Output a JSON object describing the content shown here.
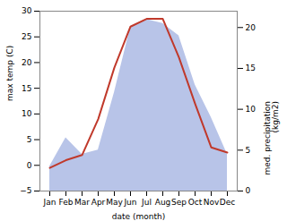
{
  "chart_data": {
    "type": "line",
    "xlabel": "date (month)",
    "ylabel": "max temp (C)",
    "y2label": "med. precipitation\n(kg/m2)",
    "categories": [
      "Jan",
      "Feb",
      "Mar",
      "Apr",
      "May",
      "Jun",
      "Jul",
      "Aug",
      "Sep",
      "Oct",
      "Nov",
      "Dec"
    ],
    "series": [
      {
        "type": "area",
        "axis": "y2",
        "color": "#b8c4e8",
        "values": [
          3.0,
          6.5,
          4.5,
          5.0,
          12.0,
          20.0,
          21.0,
          20.5,
          19.0,
          13.0,
          9.0,
          4.5
        ]
      },
      {
        "type": "line",
        "color": "#c0392b",
        "values": [
          -0.5,
          1.0,
          2.0,
          9.0,
          19.0,
          27.0,
          28.5,
          28.5,
          21.0,
          12.0,
          3.5,
          2.5
        ]
      }
    ],
    "ylim": [
      -5,
      30
    ],
    "yticks": [
      -5,
      0,
      5,
      10,
      15,
      20,
      25,
      30
    ],
    "y2lim": [
      0,
      22.0
    ],
    "y2ticks": [
      0,
      5,
      10,
      15,
      20
    ],
    "grid": false
  }
}
